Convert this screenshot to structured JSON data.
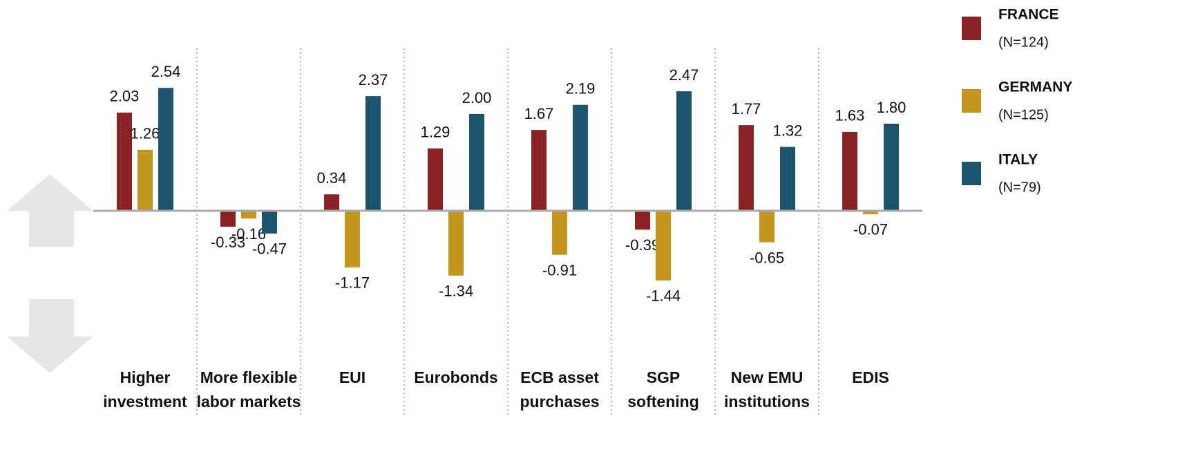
{
  "chart_data": {
    "type": "bar",
    "categories": [
      [
        "Higher",
        "investment"
      ],
      [
        "More flexible",
        "labor markets"
      ],
      [
        "EUI"
      ],
      [
        "Eurobonds"
      ],
      [
        "ECB asset",
        "purchases"
      ],
      [
        "SGP",
        "softening"
      ],
      [
        "New EMU",
        "institutions"
      ],
      [
        "EDIS"
      ]
    ],
    "series": [
      {
        "name": "FRANCE",
        "note": "(N=124)",
        "color": "#8b2326",
        "values": [
          2.03,
          -0.33,
          0.34,
          1.29,
          1.67,
          -0.39,
          1.77,
          1.63
        ],
        "value_labels": [
          "2.03",
          "-0.33",
          "0.34",
          "1.29",
          "1.67",
          "-0.39",
          "1.77",
          "1.63"
        ]
      },
      {
        "name": "GERMANY",
        "note": "(N=125)",
        "color": "#c4961e",
        "values": [
          1.26,
          -0.16,
          -1.17,
          -1.34,
          -0.91,
          -1.44,
          -0.65,
          -0.07
        ],
        "value_labels": [
          "1.26",
          "-0.16",
          "-1.17",
          "-1.34",
          "-0.91",
          "-1.44",
          "-0.65",
          "-0.07"
        ]
      },
      {
        "name": "ITALY",
        "note": "(N=79)",
        "color": "#1c546e",
        "values": [
          2.54,
          -0.47,
          2.37,
          2.0,
          2.19,
          2.47,
          1.32,
          1.8
        ],
        "value_labels": [
          "2.54",
          "-0.47",
          "2.37",
          "2.00",
          "2.19",
          "2.47",
          "1.32",
          "1.80"
        ]
      }
    ]
  }
}
